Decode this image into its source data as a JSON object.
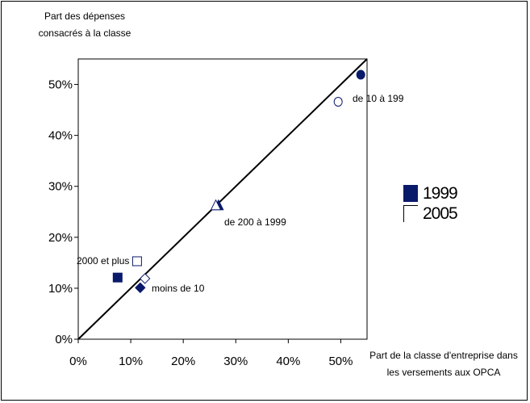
{
  "chart_data": {
    "type": "scatter",
    "ylabel": "Part des dépenses consacrés à la classe",
    "xlabel": "Part de la classe d'entreprise dans les versements aux OPCA",
    "xlim": [
      0,
      0.55
    ],
    "ylim": [
      0,
      0.55
    ],
    "xticks": [
      0,
      0.1,
      0.2,
      0.3,
      0.4,
      0.5
    ],
    "yticks": [
      0,
      0.1,
      0.2,
      0.3,
      0.4,
      0.5
    ],
    "xtick_labels": [
      "0%",
      "10%",
      "20%",
      "30%",
      "40%",
      "50%"
    ],
    "ytick_labels": [
      "0%",
      "10%",
      "20%",
      "30%",
      "40%",
      "50%"
    ],
    "reference_line": {
      "from": [
        0,
        0
      ],
      "to": [
        0.55,
        0.55
      ]
    },
    "series": [
      {
        "name": "1999",
        "color": "#0a1a6b",
        "filled": true,
        "points": [
          {
            "class": "de 10 à 199",
            "x": 0.538,
            "y": 0.519,
            "marker": "circle"
          },
          {
            "class": "de 200 à 1999",
            "x": 0.267,
            "y": 0.262,
            "marker": "triangle"
          },
          {
            "class": "2000 et plus",
            "x": 0.075,
            "y": 0.121,
            "marker": "square"
          },
          {
            "class": "moins de 10",
            "x": 0.118,
            "y": 0.101,
            "marker": "diamond"
          }
        ]
      },
      {
        "name": "2005",
        "color": "#0a1a6b",
        "filled": false,
        "points": [
          {
            "class": "de 10 à 199",
            "x": 0.495,
            "y": 0.466,
            "marker": "circle"
          },
          {
            "class": "de 200 à 1999",
            "x": 0.262,
            "y": 0.262,
            "marker": "triangle"
          },
          {
            "class": "2000 et plus",
            "x": 0.112,
            "y": 0.153,
            "marker": "square"
          },
          {
            "class": "moins de 10",
            "x": 0.127,
            "y": 0.119,
            "marker": "diamond"
          }
        ]
      }
    ],
    "annotations": [
      {
        "text": "de 10 à 199",
        "near_class": "de 10 à 199"
      },
      {
        "text": "de 200 à 1999",
        "near_class": "de 200 à 1999"
      },
      {
        "text": "2000 et plus",
        "near_class": "2000 et plus"
      },
      {
        "text": "moins de 10",
        "near_class": "moins de 10"
      }
    ],
    "legend": {
      "position": "right",
      "entries": [
        "1999",
        "2005"
      ]
    }
  }
}
